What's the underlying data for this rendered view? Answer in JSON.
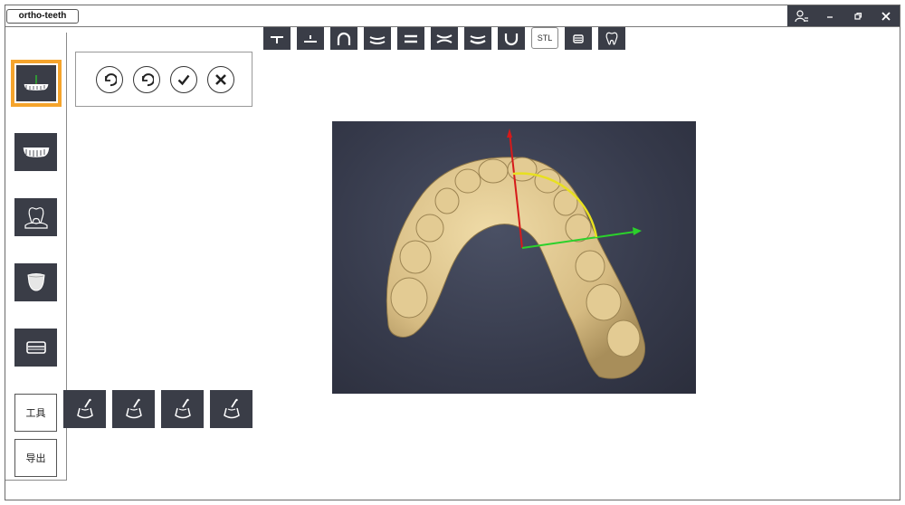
{
  "window": {
    "title": "ortho-teeth",
    "controls": [
      "user-icon",
      "minimize-icon",
      "restore-icon",
      "close-icon"
    ]
  },
  "top_toolbar": {
    "items": [
      {
        "icon": "plane-below-icon"
      },
      {
        "icon": "plane-above-icon"
      },
      {
        "icon": "arch-icon"
      },
      {
        "icon": "occlusal-lower-icon"
      },
      {
        "icon": "parallel-lines-icon"
      },
      {
        "icon": "pinch-lines-icon"
      },
      {
        "icon": "occlusal-upper-icon"
      },
      {
        "icon": "u-shape-icon"
      },
      {
        "icon": "stl-icon",
        "label": "STL"
      },
      {
        "icon": "tray-icon"
      },
      {
        "icon": "tooth-icon"
      }
    ]
  },
  "sidebar": {
    "items": [
      {
        "name": "jaw-axis",
        "icon": "jaw-axis-icon",
        "selected": true
      },
      {
        "name": "teeth-arch",
        "icon": "teeth-arch-icon"
      },
      {
        "name": "gum-tooth",
        "icon": "gum-tooth-icon"
      },
      {
        "name": "crown",
        "icon": "crown-icon"
      },
      {
        "name": "base",
        "icon": "base-icon"
      }
    ],
    "tools_label": "工具",
    "export_label": "导出"
  },
  "action_panel": {
    "buttons": [
      {
        "name": "undo",
        "icon": "undo-icon"
      },
      {
        "name": "redo",
        "icon": "redo-icon"
      },
      {
        "name": "confirm",
        "icon": "check-icon"
      },
      {
        "name": "cancel",
        "icon": "x-icon"
      }
    ]
  },
  "tool_row": {
    "buttons": [
      {
        "icon": "brush-apply-icon"
      },
      {
        "icon": "brush-apply-icon"
      },
      {
        "icon": "brush-apply-icon"
      },
      {
        "icon": "brush-apply-icon"
      }
    ]
  },
  "viewport": {
    "axis_colors": {
      "x": "#2bd12b",
      "y": "#d61a1a",
      "arc": "#e8e020"
    },
    "model_color": "#d9c08a",
    "background": "#363a4b"
  },
  "colors": {
    "accent": "#f5a42c",
    "button_dark": "#3a3d47"
  }
}
